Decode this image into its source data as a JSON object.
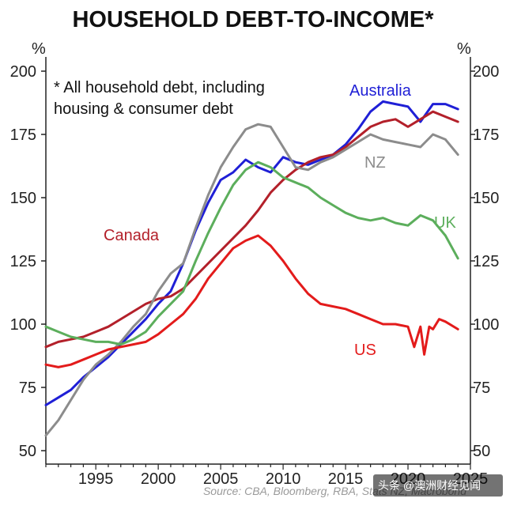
{
  "chart_data": {
    "type": "line",
    "title": "HOUSEHOLD DEBT-TO-INCOME*",
    "y_unit_left": "%",
    "y_unit_right": "%",
    "ylim": [
      50,
      200
    ],
    "xlim": [
      1991,
      2025
    ],
    "y_ticks": [
      50,
      75,
      100,
      125,
      150,
      175,
      200
    ],
    "x_ticks": [
      1995,
      2000,
      2005,
      2010,
      2015,
      2020,
      2025
    ],
    "x_tick_labels": [
      "1995",
      "2000",
      "2005",
      "2010",
      "2015",
      "2020",
      "2025"
    ],
    "y_tick_labels": [
      "50",
      "75",
      "100",
      "125",
      "150",
      "175",
      "200"
    ],
    "grid": false,
    "note": [
      "*  All household debt, including",
      "housing & consumer debt"
    ],
    "source": "Source: CBA, Bloomberg, RBA, Stats NZ, Macrobond",
    "series": [
      {
        "name": "Australia",
        "color": "#1f1fd6",
        "x": [
          1991,
          1992,
          1993,
          1994,
          1995,
          1996,
          1997,
          1998,
          1999,
          2000,
          2001,
          2002,
          2003,
          2004,
          2005,
          2006,
          2007,
          2008,
          2009,
          2010,
          2011,
          2012,
          2013,
          2014,
          2015,
          2016,
          2017,
          2018,
          2019,
          2020,
          2021,
          2022,
          2023,
          2024
        ],
        "values": [
          68,
          71,
          74,
          79,
          83,
          87,
          92,
          97,
          102,
          108,
          113,
          124,
          137,
          148,
          157,
          160,
          165,
          162,
          160,
          166,
          164,
          163,
          165,
          167,
          171,
          177,
          184,
          188,
          187,
          186,
          180,
          187,
          187,
          185
        ]
      },
      {
        "name": "Canada",
        "color": "#b3202a",
        "x": [
          1991,
          1992,
          1993,
          1994,
          1995,
          1996,
          1997,
          1998,
          1999,
          2000,
          2001,
          2002,
          2003,
          2004,
          2005,
          2006,
          2007,
          2008,
          2009,
          2010,
          2011,
          2012,
          2013,
          2014,
          2015,
          2016,
          2017,
          2018,
          2019,
          2020,
          2021,
          2022,
          2023,
          2024
        ],
        "values": [
          91,
          93,
          94,
          95,
          97,
          99,
          102,
          105,
          108,
          110,
          111,
          114,
          119,
          124,
          129,
          134,
          139,
          145,
          152,
          157,
          161,
          164,
          166,
          167,
          170,
          174,
          178,
          180,
          181,
          178,
          181,
          184,
          182,
          180
        ]
      },
      {
        "name": "NZ",
        "color": "#8c8c8c",
        "x": [
          1991,
          1992,
          1993,
          1994,
          1995,
          1996,
          1997,
          1998,
          1999,
          2000,
          2001,
          2002,
          2003,
          2004,
          2005,
          2006,
          2007,
          2008,
          2009,
          2010,
          2011,
          2012,
          2013,
          2014,
          2015,
          2016,
          2017,
          2018,
          2019,
          2020,
          2021,
          2022,
          2023,
          2024
        ],
        "values": [
          56,
          62,
          70,
          78,
          84,
          88,
          93,
          99,
          104,
          113,
          120,
          124,
          138,
          151,
          162,
          170,
          177,
          179,
          178,
          170,
          162,
          161,
          164,
          166,
          169,
          172,
          175,
          173,
          172,
          171,
          170,
          175,
          173,
          167
        ]
      },
      {
        "name": "UK",
        "color": "#5cae5c",
        "x": [
          1991,
          1992,
          1993,
          1994,
          1995,
          1996,
          1997,
          1998,
          1999,
          2000,
          2001,
          2002,
          2003,
          2004,
          2005,
          2006,
          2007,
          2008,
          2009,
          2010,
          2011,
          2012,
          2013,
          2014,
          2015,
          2016,
          2017,
          2018,
          2019,
          2020,
          2021,
          2022,
          2023,
          2024
        ],
        "values": [
          99,
          97,
          95,
          94,
          93,
          93,
          92,
          94,
          97,
          103,
          108,
          113,
          125,
          136,
          146,
          155,
          161,
          164,
          162,
          158,
          156,
          154,
          150,
          147,
          144,
          142,
          141,
          142,
          140,
          139,
          143,
          141,
          135,
          126
        ]
      },
      {
        "name": "US",
        "color": "#e31b1b",
        "x": [
          1991,
          1992,
          1993,
          1994,
          1995,
          1996,
          1997,
          1998,
          1999,
          2000,
          2001,
          2002,
          2003,
          2004,
          2005,
          2006,
          2007,
          2008,
          2009,
          2010,
          2011,
          2012,
          2013,
          2014,
          2015,
          2016,
          2017,
          2018,
          2019,
          2020,
          2020.5,
          2021,
          2021.3,
          2021.7,
          2022,
          2022.5,
          2023,
          2024
        ],
        "values": [
          84,
          83,
          84,
          86,
          88,
          90,
          91,
          92,
          93,
          96,
          100,
          104,
          110,
          118,
          124,
          130,
          133,
          135,
          131,
          125,
          118,
          112,
          108,
          107,
          106,
          104,
          102,
          100,
          100,
          99,
          91,
          99,
          88,
          99,
          98,
          102,
          101,
          98
        ]
      }
    ]
  },
  "watermark": "头条 @澳洲财经见闻"
}
